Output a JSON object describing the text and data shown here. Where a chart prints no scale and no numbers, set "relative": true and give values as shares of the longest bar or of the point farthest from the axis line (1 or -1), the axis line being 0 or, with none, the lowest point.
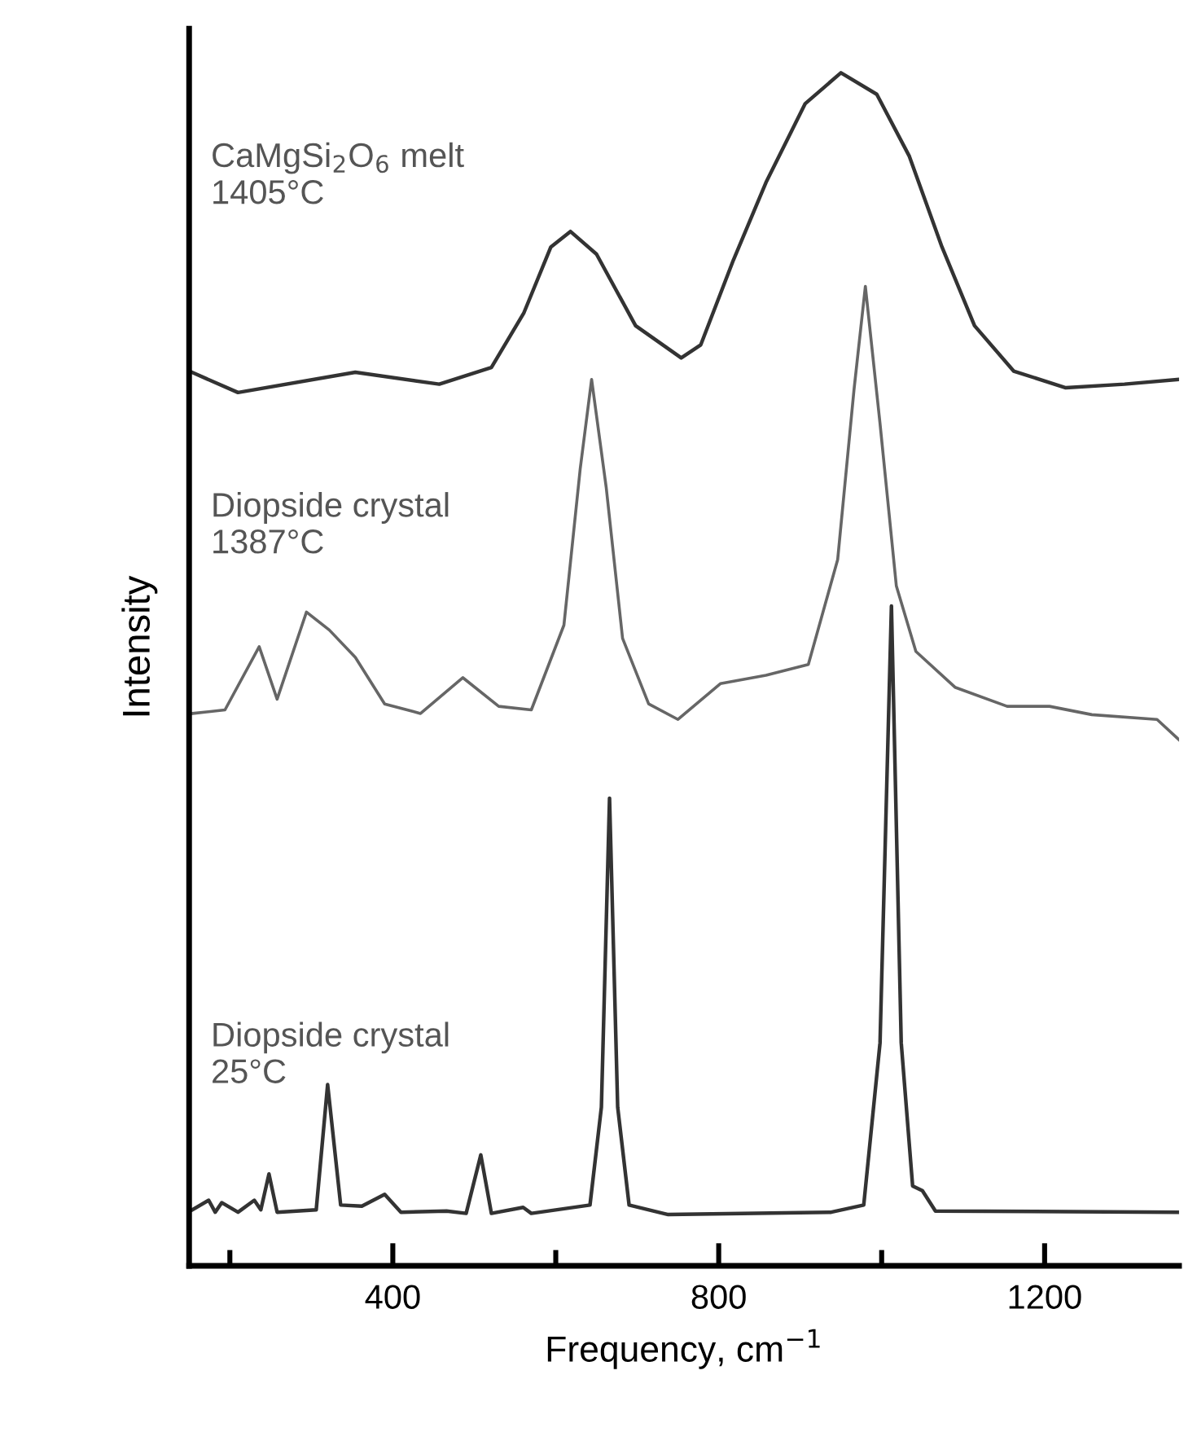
{
  "chart_data": {
    "type": "line",
    "relative": true,
    "xlabel": "Frequency, cm$^{−1}$",
    "ylabel": "Intensity",
    "xlim": [
      150,
      1365
    ],
    "xticks": [
      {
        "value": 200,
        "label": null
      },
      400,
      {
        "value": 600,
        "label": null
      },
      800,
      {
        "value": 1000,
        "label": null
      },
      1200
    ],
    "grid": false,
    "legend": false,
    "marker": "none",
    "line_style": "solid",
    "series": [
      {
        "name": "CaMgSi$_{2}$O$_{6}$ melt\n1405°C",
        "color": "#333333",
        "x": [
          150,
          210,
          354,
          457,
          521,
          561,
          594,
          618,
          650,
          698,
          754,
          778,
          818,
          858,
          906,
          950,
          994,
          1034,
          1074,
          1114,
          1162,
          1226,
          1298,
          1365
        ],
        "values": [
          0.75,
          0.732,
          0.749,
          0.739,
          0.753,
          0.799,
          0.854,
          0.867,
          0.848,
          0.788,
          0.761,
          0.772,
          0.843,
          0.908,
          0.974,
          1.0,
          0.982,
          0.93,
          0.854,
          0.788,
          0.75,
          0.736,
          0.739,
          0.743
        ]
      },
      {
        "name": "Diopside crystal\n1387°C",
        "color": "#666666",
        "x": [
          154,
          194,
          236,
          258,
          294,
          322,
          354,
          390,
          434,
          486,
          530,
          570,
          610,
          630,
          644,
          662,
          682,
          714,
          750,
          802,
          858,
          910,
          946,
          966,
          980,
          998,
          1018,
          1042,
          1090,
          1154,
          1206,
          1258,
          1338,
          1365
        ],
        "values": [
          0.463,
          0.466,
          0.519,
          0.475,
          0.548,
          0.533,
          0.51,
          0.471,
          0.463,
          0.493,
          0.469,
          0.466,
          0.537,
          0.668,
          0.743,
          0.652,
          0.526,
          0.471,
          0.458,
          0.488,
          0.495,
          0.504,
          0.592,
          0.734,
          0.821,
          0.706,
          0.57,
          0.515,
          0.485,
          0.469,
          0.469,
          0.462,
          0.458,
          0.441
        ]
      },
      {
        "name": "Diopside crystal\n25°C",
        "color": "#333333",
        "x": [
          154,
          174,
          182,
          190,
          210,
          230,
          238,
          248,
          258,
          306,
          320,
          336,
          362,
          390,
          410,
          466,
          490,
          508,
          521,
          560,
          570,
          642,
          656,
          666,
          676,
          690,
          738,
          938,
          978,
          998,
          1012,
          1024,
          1038,
          1050,
          1066,
          1365
        ],
        "values": [
          0.047,
          0.055,
          0.045,
          0.053,
          0.045,
          0.055,
          0.047,
          0.077,
          0.045,
          0.047,
          0.152,
          0.051,
          0.05,
          0.06,
          0.045,
          0.046,
          0.044,
          0.093,
          0.044,
          0.049,
          0.044,
          0.051,
          0.133,
          0.392,
          0.133,
          0.051,
          0.043,
          0.045,
          0.051,
          0.187,
          0.553,
          0.187,
          0.067,
          0.063,
          0.046,
          0.045
        ]
      }
    ]
  }
}
